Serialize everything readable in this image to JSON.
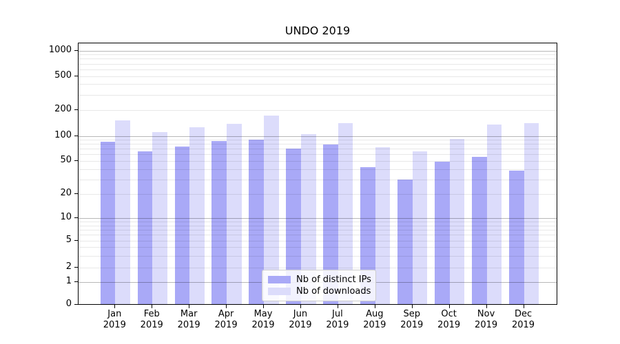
{
  "chart_data": {
    "type": "bar",
    "title": "UNDO 2019",
    "x": {
      "months": [
        "Jan",
        "Feb",
        "Mar",
        "Apr",
        "May",
        "Jun",
        "Jul",
        "Aug",
        "Sep",
        "Oct",
        "Nov",
        "Dec"
      ],
      "year": "2019"
    },
    "series": [
      {
        "name": "Nb of distinct IPs",
        "color": "#a9a9f7",
        "values": [
          85,
          65,
          74,
          87,
          90,
          70,
          79,
          42,
          30,
          49,
          56,
          38
        ]
      },
      {
        "name": "Nb of downloads",
        "color": "#dcdcfb",
        "values": [
          152,
          110,
          125,
          138,
          170,
          105,
          140,
          73,
          65,
          92,
          136,
          140
        ]
      }
    ],
    "y_axis": {
      "scale": "symlog",
      "tick_values": [
        0,
        1,
        2,
        5,
        10,
        20,
        50,
        100,
        200,
        500,
        1000
      ],
      "tick_labels": [
        "0",
        "1",
        "2",
        "5",
        "10",
        "20",
        "50",
        "100",
        "200",
        "500",
        "1000"
      ]
    },
    "grid": {
      "major_lines": [
        1,
        10,
        100,
        1000
      ],
      "minor_lines": [
        2,
        3,
        4,
        5,
        6,
        7,
        8,
        9,
        20,
        30,
        40,
        50,
        60,
        70,
        80,
        90,
        200,
        300,
        400,
        500,
        600,
        700,
        800,
        900
      ]
    },
    "legend": {
      "position": "lower center"
    }
  }
}
